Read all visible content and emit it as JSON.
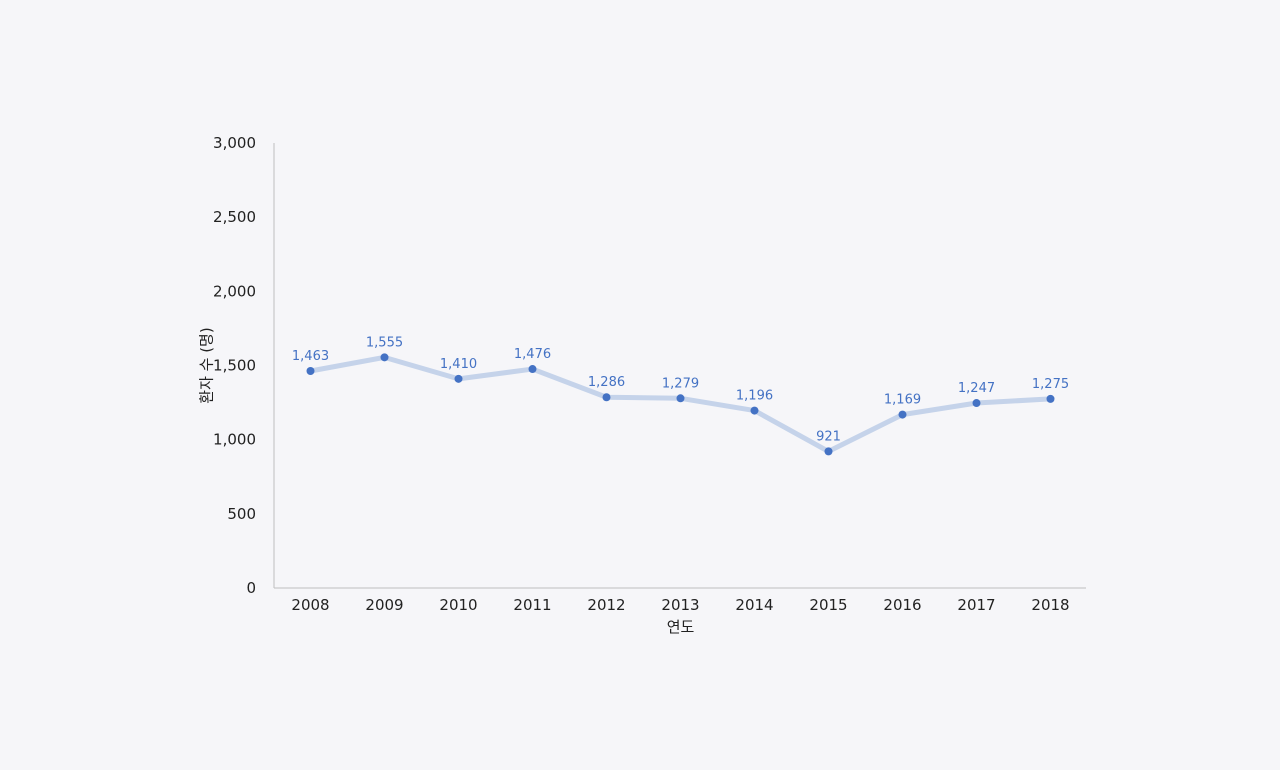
{
  "chart_data": {
    "type": "line",
    "title": "",
    "xlabel": "연도",
    "ylabel": "환자 수 (명)",
    "ylim": [
      0,
      3000
    ],
    "yticks": [
      0,
      500,
      1000,
      1500,
      2000,
      2500,
      3000
    ],
    "ytick_labels": [
      "0",
      "500",
      "1,000",
      "1,500",
      "2,000",
      "2,500",
      "3,000"
    ],
    "categories": [
      "2008",
      "2009",
      "2010",
      "2011",
      "2012",
      "2013",
      "2014",
      "2015",
      "2016",
      "2017",
      "2018"
    ],
    "series": [
      {
        "values": [
          1463,
          1555,
          1410,
          1476,
          1286,
          1279,
          1196,
          921,
          1169,
          1247,
          1275
        ],
        "data_labels": [
          "1,463",
          "1,555",
          "1,410",
          "1,476",
          "1,286",
          "1,279",
          "1,196",
          "921",
          "1,169",
          "1,247",
          "1,275"
        ]
      }
    ],
    "grid": false,
    "legend": "none",
    "colors": {
      "line": "#c5d3ea",
      "marker": "#4472c4",
      "label": "#4472c4",
      "axis": "#bfbfbf"
    }
  }
}
